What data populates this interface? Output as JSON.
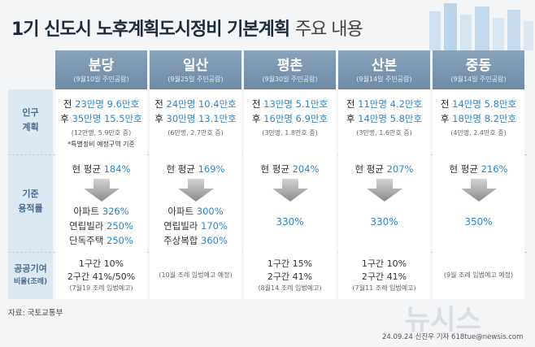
{
  "header": {
    "title": "1기 신도시 노후계획도시정비 기본계획",
    "title_light": "주요 내용"
  },
  "row_labels": [
    [
      "인구",
      "계획"
    ],
    [
      "기준",
      "용적률"
    ],
    [
      "공공기여",
      "비율(조례)"
    ]
  ],
  "columns": [
    {
      "name": "분당",
      "date": "(9월10일 주민공람)",
      "population": {
        "before": {
          "prefix": "전",
          "people": "23만명",
          "homes": "9.6만호"
        },
        "after": {
          "prefix": "후",
          "people": "35만명",
          "homes": "15.5만호"
        },
        "change": "(12만명, 5.9만호 증)",
        "note": "*특별정비 예정구역 기준"
      },
      "far": {
        "current_label": "현 평균",
        "current": "184%",
        "targets": [
          {
            "label": "아파트",
            "value": "326%"
          },
          {
            "label": "연립빌라",
            "value": "250%"
          },
          {
            "label": "단독주택",
            "value": "250%"
          }
        ]
      },
      "contribution": {
        "lines": [
          {
            "label": "1구간",
            "value": "10%"
          },
          {
            "label": "2구간",
            "value": "41%/50%"
          }
        ],
        "note": "(7월19 조례 입법예고)"
      }
    },
    {
      "name": "일산",
      "date": "(9월25일 주민공람)",
      "population": {
        "before": {
          "prefix": "전",
          "people": "24만명",
          "homes": "10.4만호"
        },
        "after": {
          "prefix": "후",
          "people": "30만명",
          "homes": "13.1만호"
        },
        "change": "(6만명, 2.7만호 증)"
      },
      "far": {
        "current_label": "현 평균",
        "current": "169%",
        "targets": [
          {
            "label": "아파트",
            "value": "300%"
          },
          {
            "label": "연립빌라",
            "value": "170%"
          },
          {
            "label": "주상복합",
            "value": "360%"
          }
        ]
      },
      "contribution": {
        "lines": [],
        "note": "(10월 조례 입법예고 예정)"
      }
    },
    {
      "name": "평촌",
      "date": "(9월30일 주민공람)",
      "population": {
        "before": {
          "prefix": "전",
          "people": "13만명",
          "homes": "5.1만호"
        },
        "after": {
          "prefix": "후",
          "people": "16만명",
          "homes": "6.9만호"
        },
        "change": "(3만명, 1.8만호 증)"
      },
      "far": {
        "current_label": "현 평균",
        "current": "204%",
        "targets": [
          {
            "value": "330%"
          }
        ]
      },
      "contribution": {
        "lines": [
          {
            "label": "1구간",
            "value": "15%"
          },
          {
            "label": "2구간",
            "value": "41%"
          }
        ],
        "note": "(8월14 조례 입법예고)"
      }
    },
    {
      "name": "산본",
      "date": "(9월14일 주민공람)",
      "population": {
        "before": {
          "prefix": "전",
          "people": "11만명",
          "homes": "4.2만호"
        },
        "after": {
          "prefix": "후",
          "people": "14만명",
          "homes": "5.8만호"
        },
        "change": "(3만명, 1.6만호 증)"
      },
      "far": {
        "current_label": "현 평균",
        "current": "207%",
        "targets": [
          {
            "value": "330%"
          }
        ]
      },
      "contribution": {
        "lines": [
          {
            "label": "1구간",
            "value": "10%"
          },
          {
            "label": "2구간",
            "value": "41%"
          }
        ],
        "note": "(7월11 조례 입법예고)"
      }
    },
    {
      "name": "중동",
      "date": "(9월14일 주민공람)",
      "population": {
        "before": {
          "prefix": "전",
          "people": "14만명",
          "homes": "5.8만호"
        },
        "after": {
          "prefix": "후",
          "people": "18만명",
          "homes": "8.2만호"
        },
        "change": "(4만명, 2.4만호 증)"
      },
      "far": {
        "current_label": "현 평균",
        "current": "216%",
        "targets": [
          {
            "value": "350%"
          }
        ]
      },
      "contribution": {
        "lines": [],
        "note": "(9월 조례 입법예고 예정)"
      }
    }
  ],
  "footer": {
    "source": "자료: 국토교통부",
    "credit": "24.09.24 신진우 기자 618tue@newsis.com",
    "watermark": "뉴시스"
  }
}
